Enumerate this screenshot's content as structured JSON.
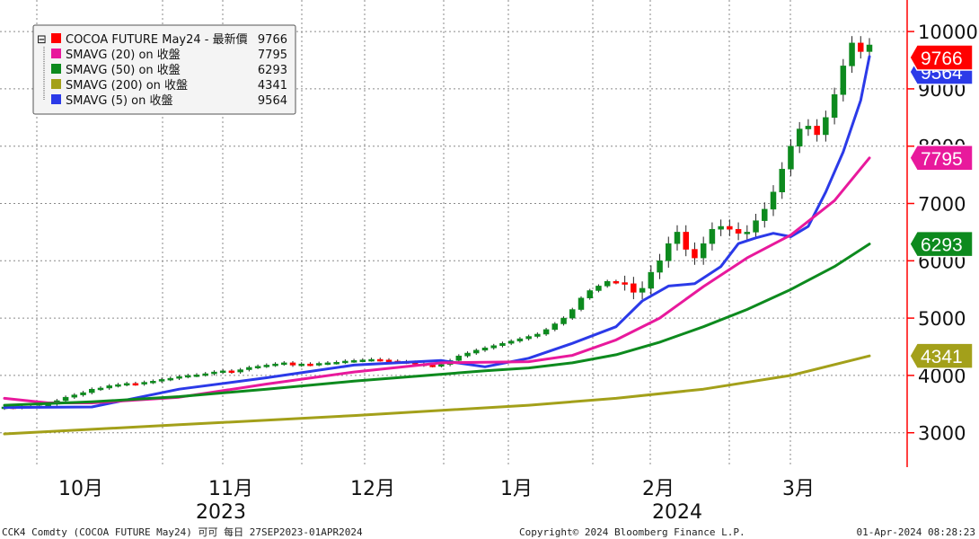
{
  "legend": {
    "collapse_symbol": "⊟",
    "items": [
      {
        "label": "COCOA FUTURE May24 - 最新價",
        "value": "9766",
        "color": "#ff0000"
      },
      {
        "label": "SMAVG (20)  on 收盤",
        "value": "7795",
        "color": "#e8199c"
      },
      {
        "label": "SMAVG (50)  on 收盤",
        "value": "6293",
        "color": "#0d8a1e"
      },
      {
        "label": "SMAVG (200)  on 收盤",
        "value": "4341",
        "color": "#a3a01a"
      },
      {
        "label": "SMAVG (5)  on 收盤",
        "value": "9564",
        "color": "#2b3ae8"
      }
    ]
  },
  "badges": [
    {
      "text": "9766",
      "value": 9766,
      "color": "#ff0000"
    },
    {
      "text": "9564",
      "value": 9564,
      "color": "#2b3ae8"
    },
    {
      "text": "7795",
      "value": 7795,
      "color": "#e8199c"
    },
    {
      "text": "6293",
      "value": 6293,
      "color": "#0d8a1e"
    },
    {
      "text": "4341",
      "value": 4341,
      "color": "#a3a01a"
    }
  ],
  "footer": {
    "left": "CCK4 Comdty (COCOA FUTURE     May24) 可可  每日 27SEP2023-01APR2024",
    "center": "Copyright© 2024 Bloomberg Finance L.P.",
    "right": "01-Apr-2024 08:28:23"
  },
  "chart_data": {
    "type": "candlestick",
    "y_ticks": [
      "3000",
      "4000",
      "5000",
      "6000",
      "7000",
      "8000",
      "9000",
      "10000"
    ],
    "ylim": [
      2400,
      10550
    ],
    "x_months": [
      "10月",
      "11月",
      "12月",
      "1月",
      "2月",
      "3月"
    ],
    "x_years": [
      "2023",
      "2024"
    ],
    "grid": true,
    "colors": {
      "up": "#0d8a1e",
      "down": "#ff0000"
    },
    "candles_close": [
      3450,
      3440,
      3460,
      3450,
      3470,
      3500,
      3560,
      3620,
      3660,
      3700,
      3760,
      3780,
      3820,
      3840,
      3860,
      3850,
      3880,
      3900,
      3930,
      3950,
      3980,
      4000,
      4010,
      4030,
      4060,
      4080,
      4060,
      4100,
      4140,
      4160,
      4180,
      4200,
      4220,
      4180,
      4200,
      4190,
      4210,
      4220,
      4230,
      4250,
      4260,
      4270,
      4280,
      4270,
      4250,
      4240,
      4230,
      4200,
      4180,
      4170,
      4190,
      4260,
      4340,
      4390,
      4440,
      4480,
      4520,
      4560,
      4600,
      4640,
      4680,
      4720,
      4800,
      4900,
      5000,
      5150,
      5350,
      5480,
      5560,
      5640,
      5620,
      5600,
      5450,
      5520,
      5800,
      6000,
      6300,
      6500,
      6200,
      6050,
      6300,
      6550,
      6600,
      6550,
      6480,
      6500,
      6700,
      6900,
      7200,
      7600,
      8000,
      8300,
      8350,
      8200,
      8500,
      8900,
      9400,
      9800,
      9650,
      9766
    ],
    "series": [
      {
        "name": "SMAVG (5)  on 收盤",
        "color": "#2b3ae8",
        "x": [
          0,
          10,
          20,
          30,
          40,
          50,
          55,
          60,
          65,
          70,
          73,
          76,
          79,
          82,
          84,
          86,
          88,
          90,
          92,
          94,
          96,
          98,
          99
        ],
        "values": [
          3440,
          3450,
          3760,
          3960,
          4180,
          4260,
          4150,
          4300,
          4560,
          4850,
          5300,
          5560,
          5600,
          5900,
          6300,
          6400,
          6480,
          6420,
          6600,
          7200,
          7900,
          8800,
          9564
        ]
      },
      {
        "name": "SMAVG (20)  on 收盤",
        "color": "#e8199c",
        "x": [
          0,
          5,
          10,
          20,
          30,
          40,
          50,
          55,
          60,
          65,
          70,
          75,
          80,
          85,
          90,
          95,
          99
        ],
        "values": [
          3600,
          3520,
          3520,
          3620,
          3850,
          4060,
          4220,
          4230,
          4240,
          4350,
          4620,
          5000,
          5550,
          6050,
          6450,
          7050,
          7795
        ]
      },
      {
        "name": "SMAVG (50)  on 收盤",
        "color": "#0d8a1e",
        "x": [
          0,
          10,
          20,
          30,
          40,
          50,
          55,
          60,
          65,
          70,
          75,
          80,
          85,
          90,
          95,
          99
        ],
        "values": [
          3480,
          3540,
          3630,
          3760,
          3900,
          4020,
          4080,
          4130,
          4220,
          4360,
          4580,
          4850,
          5150,
          5500,
          5900,
          6293
        ]
      },
      {
        "name": "SMAVG (200)  on 收盤",
        "color": "#a3a01a",
        "x": [
          0,
          20,
          40,
          60,
          70,
          80,
          90,
          99
        ],
        "values": [
          2980,
          3140,
          3300,
          3480,
          3600,
          3760,
          4000,
          4341
        ]
      }
    ]
  }
}
